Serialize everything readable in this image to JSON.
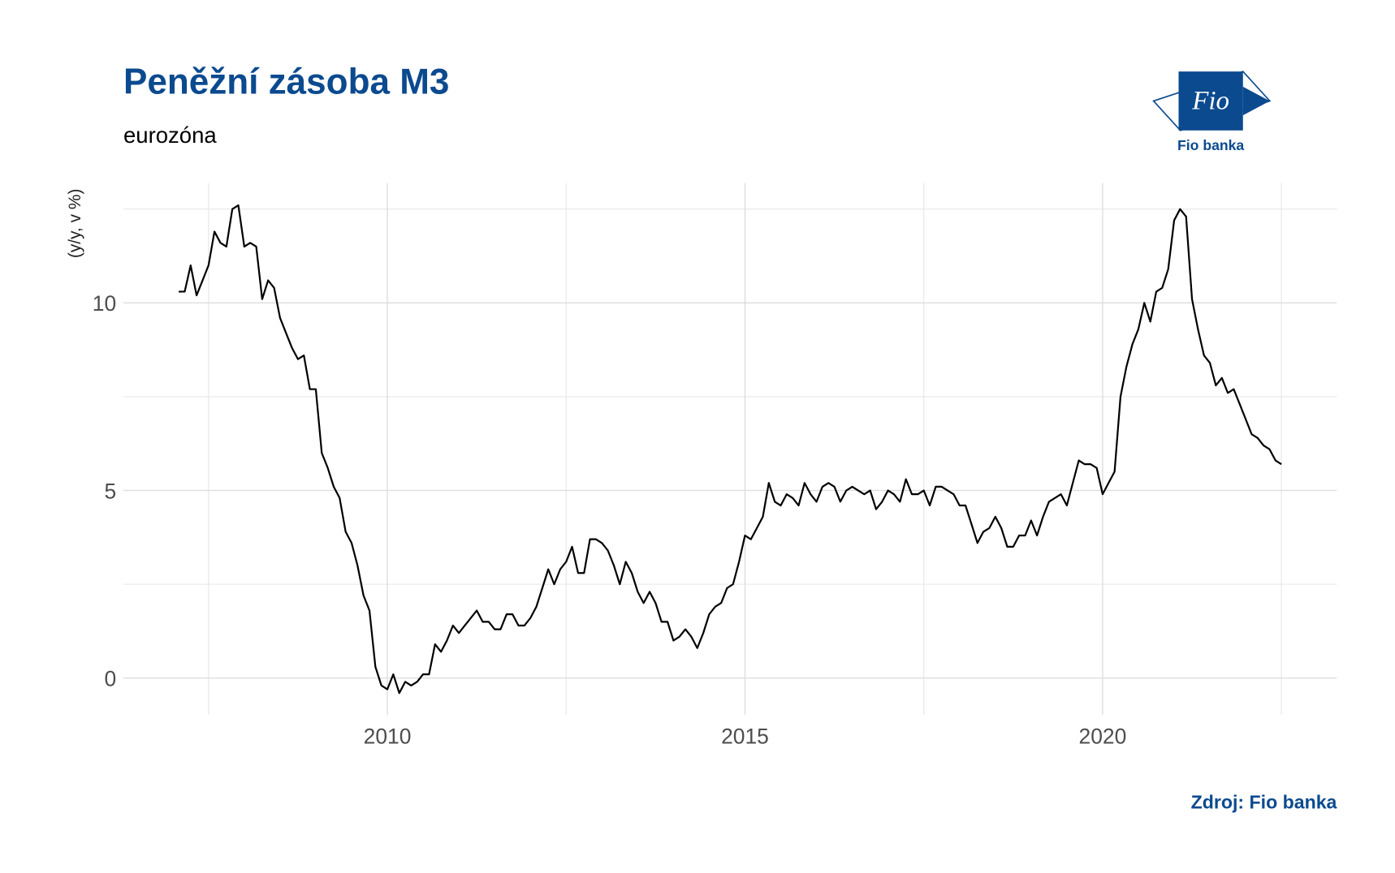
{
  "chart_data": {
    "type": "line",
    "title": "Peněžní zásoba M3",
    "subtitle": "eurozóna",
    "y_label": "(y/y, v %)",
    "source": "Zdroj: Fio banka",
    "logo": {
      "mark": "Fio",
      "name": "Fio banka"
    },
    "xlim": [
      2006.31,
      2023.275
    ],
    "xticks": [
      2010,
      2015,
      2020
    ],
    "xgrid_minor": [
      2007.5,
      2012.5,
      2017.5,
      2022.5
    ],
    "ylim": [
      -0.98,
      13.19
    ],
    "yticks": [
      0,
      5,
      10
    ],
    "ygrid_minor": [
      2.5,
      7.5,
      12.5
    ],
    "grid": true,
    "series": [
      {
        "color": "#000000",
        "x": [
          2007.083,
          2007.167,
          2007.25,
          2007.333,
          2007.417,
          2007.5,
          2007.583,
          2007.667,
          2007.75,
          2007.833,
          2007.917,
          2008,
          2008.083,
          2008.167,
          2008.25,
          2008.333,
          2008.417,
          2008.5,
          2008.583,
          2008.667,
          2008.75,
          2008.833,
          2008.917,
          2009,
          2009.083,
          2009.167,
          2009.25,
          2009.333,
          2009.417,
          2009.5,
          2009.583,
          2009.667,
          2009.75,
          2009.833,
          2009.917,
          2010,
          2010.083,
          2010.167,
          2010.25,
          2010.333,
          2010.417,
          2010.5,
          2010.583,
          2010.667,
          2010.75,
          2010.833,
          2010.917,
          2011,
          2011.083,
          2011.167,
          2011.25,
          2011.333,
          2011.417,
          2011.5,
          2011.583,
          2011.667,
          2011.75,
          2011.833,
          2011.917,
          2012,
          2012.083,
          2012.167,
          2012.25,
          2012.333,
          2012.417,
          2012.5,
          2012.583,
          2012.667,
          2012.75,
          2012.833,
          2012.917,
          2013,
          2013.083,
          2013.167,
          2013.25,
          2013.333,
          2013.417,
          2013.5,
          2013.583,
          2013.667,
          2013.75,
          2013.833,
          2013.917,
          2014,
          2014.083,
          2014.167,
          2014.25,
          2014.333,
          2014.417,
          2014.5,
          2014.583,
          2014.667,
          2014.75,
          2014.833,
          2014.917,
          2015,
          2015.083,
          2015.167,
          2015.25,
          2015.333,
          2015.417,
          2015.5,
          2015.583,
          2015.667,
          2015.75,
          2015.833,
          2015.917,
          2016,
          2016.083,
          2016.167,
          2016.25,
          2016.333,
          2016.417,
          2016.5,
          2016.583,
          2016.667,
          2016.75,
          2016.833,
          2016.917,
          2017,
          2017.083,
          2017.167,
          2017.25,
          2017.333,
          2017.417,
          2017.5,
          2017.583,
          2017.667,
          2017.75,
          2017.833,
          2017.917,
          2018,
          2018.083,
          2018.167,
          2018.25,
          2018.333,
          2018.417,
          2018.5,
          2018.583,
          2018.667,
          2018.75,
          2018.833,
          2018.917,
          2019,
          2019.083,
          2019.167,
          2019.25,
          2019.333,
          2019.417,
          2019.5,
          2019.583,
          2019.667,
          2019.75,
          2019.833,
          2019.917,
          2020,
          2020.083,
          2020.167,
          2020.25,
          2020.333,
          2020.417,
          2020.5,
          2020.583,
          2020.667,
          2020.75,
          2020.833,
          2020.917,
          2021,
          2021.083,
          2021.167,
          2021.25,
          2021.333,
          2021.417,
          2021.5,
          2021.583,
          2021.667,
          2021.75,
          2021.833,
          2021.917,
          2022,
          2022.083,
          2022.167,
          2022.25,
          2022.333,
          2022.417,
          2022.5
        ],
        "values": [
          10.3,
          10.3,
          11.0,
          10.2,
          10.6,
          11.0,
          11.9,
          11.6,
          11.5,
          12.5,
          12.6,
          11.5,
          11.6,
          11.5,
          10.1,
          10.6,
          10.4,
          9.6,
          9.2,
          8.8,
          8.5,
          8.6,
          7.7,
          7.7,
          6.0,
          5.6,
          5.1,
          4.8,
          3.9,
          3.6,
          3.0,
          2.2,
          1.8,
          0.3,
          -0.2,
          -0.3,
          0.1,
          -0.4,
          -0.1,
          -0.2,
          -0.1,
          0.1,
          0.1,
          0.9,
          0.7,
          1.0,
          1.4,
          1.2,
          1.4,
          1.6,
          1.8,
          1.5,
          1.5,
          1.3,
          1.3,
          1.7,
          1.7,
          1.4,
          1.4,
          1.6,
          1.9,
          2.4,
          2.9,
          2.5,
          2.9,
          3.1,
          3.5,
          2.8,
          2.8,
          3.7,
          3.7,
          3.6,
          3.4,
          3.0,
          2.5,
          3.1,
          2.8,
          2.3,
          2.0,
          2.3,
          2.0,
          1.5,
          1.5,
          1.0,
          1.1,
          1.3,
          1.1,
          0.8,
          1.2,
          1.7,
          1.9,
          2.0,
          2.4,
          2.5,
          3.1,
          3.8,
          3.7,
          4.0,
          4.3,
          5.2,
          4.7,
          4.6,
          4.9,
          4.8,
          4.6,
          5.2,
          4.9,
          4.7,
          5.1,
          5.2,
          5.1,
          4.7,
          5.0,
          5.1,
          5.0,
          4.9,
          5.0,
          4.5,
          4.7,
          5.0,
          4.9,
          4.7,
          5.3,
          4.9,
          4.9,
          5.0,
          4.6,
          5.1,
          5.1,
          5.0,
          4.9,
          4.6,
          4.6,
          4.1,
          3.6,
          3.9,
          4.0,
          4.3,
          4.0,
          3.5,
          3.5,
          3.8,
          3.8,
          4.2,
          3.8,
          4.3,
          4.7,
          4.8,
          4.9,
          4.6,
          5.2,
          5.8,
          5.7,
          5.7,
          5.6,
          4.9,
          5.2,
          5.5,
          7.5,
          8.3,
          8.9,
          9.3,
          10.0,
          9.5,
          10.3,
          10.4,
          10.9,
          12.2,
          12.5,
          12.3,
          10.1,
          9.3,
          8.6,
          8.4,
          7.8,
          8.0,
          7.6,
          7.7,
          7.3,
          6.9,
          6.5,
          6.4,
          6.2,
          6.1,
          5.8,
          5.7
        ]
      }
    ]
  }
}
